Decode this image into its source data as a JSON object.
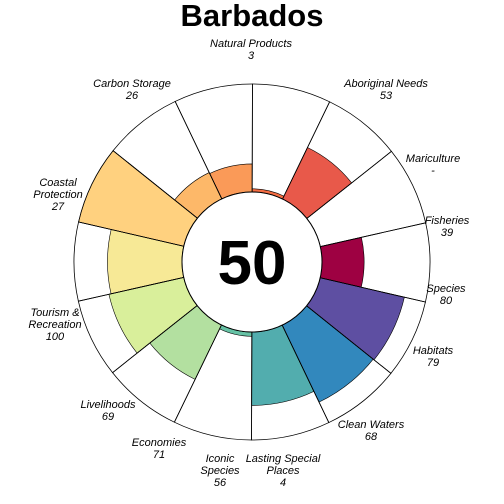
{
  "chart_data": {
    "type": "flower",
    "title": "Barbados",
    "center_value": "50",
    "max_value": 100,
    "petals": [
      {
        "name": "Fisheries",
        "value_label": "39",
        "score": 39,
        "color": "#9E0142"
      },
      {
        "name": "Mariculture",
        "value_label": "-",
        "score": null,
        "color": "#D53E4F"
      },
      {
        "name": "Aboriginal Needs",
        "value_label": "53",
        "score": 53,
        "color": "#E8594A"
      },
      {
        "name": "Natural Products",
        "value_label": "3",
        "score": 3,
        "color": "#F46D43"
      },
      {
        "name": "Carbon Storage",
        "value_label": "26",
        "score": 26,
        "color": "#FA9A58"
      },
      {
        "name": "Coastal Protection",
        "value_label": "27",
        "score": 27,
        "color": "#FDB869"
      },
      {
        "name": "Tourism & Recreation",
        "value_label": "100",
        "score": 100,
        "color": "#FFD17F"
      },
      {
        "name": "Livelihoods",
        "value_label": "69",
        "score": 69,
        "color": "#F7E996"
      },
      {
        "name": "Economies",
        "value_label": "71",
        "score": 71,
        "color": "#D9EF9B"
      },
      {
        "name": "Iconic Species",
        "value_label": "56",
        "score": 56,
        "color": "#B3E0A0"
      },
      {
        "name": "Lasting Special Places",
        "value_label": "4",
        "score": 4,
        "color": "#66C2A5"
      },
      {
        "name": "Clean Waters",
        "value_label": "68",
        "score": 68,
        "color": "#52ADAE"
      },
      {
        "name": "Habitats",
        "value_label": "79",
        "score": 79,
        "color": "#3288BD"
      },
      {
        "name": "Species",
        "value_label": "80",
        "score": 80,
        "color": "#5E4FA2"
      }
    ]
  }
}
